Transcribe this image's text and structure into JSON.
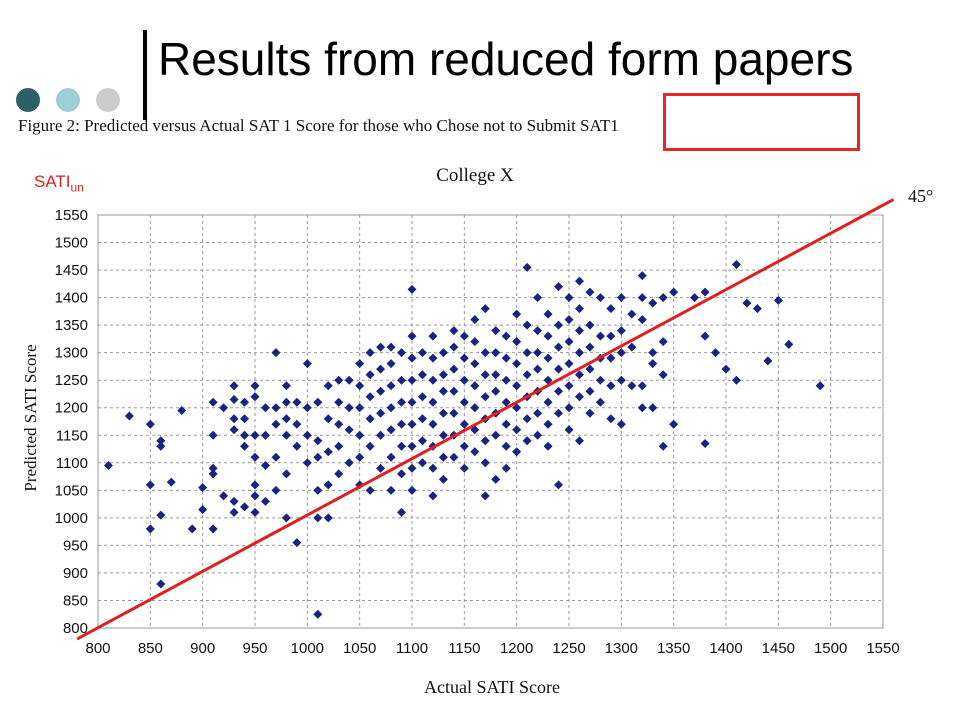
{
  "slide": {
    "title": "Results from reduced form papers",
    "figure_caption": "Figure 2: Predicted versus Actual SAT 1 Score for those who Chose not to Submit SAT1",
    "annotation_label": "SATI",
    "annotation_subscript": "un",
    "colors": {
      "dot_dark": "#2f5f66",
      "dot_mid": "#9fcfd6",
      "dot_light": "#cccccc",
      "highlight": "#e8262a"
    }
  },
  "chart_data": {
    "type": "scatter",
    "title": "College X",
    "xlabel": "Actual SATI Score",
    "ylabel": "Predicted SATI Score",
    "xlim": [
      800,
      1550
    ],
    "ylim": [
      800,
      1550
    ],
    "xticks": [
      800,
      850,
      900,
      950,
      1000,
      1050,
      1100,
      1150,
      1200,
      1250,
      1300,
      1350,
      1400,
      1450,
      1500,
      1550
    ],
    "yticks": [
      800,
      850,
      900,
      950,
      1000,
      1050,
      1100,
      1150,
      1200,
      1250,
      1300,
      1350,
      1400,
      1450,
      1500,
      1550
    ],
    "grid": true,
    "marker_color": "#1a237e",
    "reference_line": {
      "label": "45°",
      "color": "#e02020",
      "from": [
        780,
        780
      ],
      "to": [
        1560,
        1560
      ]
    },
    "points": [
      [
        810,
        1095
      ],
      [
        830,
        1185
      ],
      [
        850,
        1170
      ],
      [
        850,
        1060
      ],
      [
        850,
        980
      ],
      [
        860,
        1140
      ],
      [
        860,
        1130
      ],
      [
        860,
        1005
      ],
      [
        860,
        880
      ],
      [
        870,
        1065
      ],
      [
        880,
        1195
      ],
      [
        890,
        980
      ],
      [
        900,
        1055
      ],
      [
        900,
        1015
      ],
      [
        910,
        1210
      ],
      [
        910,
        1150
      ],
      [
        910,
        1090
      ],
      [
        910,
        1080
      ],
      [
        910,
        980
      ],
      [
        920,
        1200
      ],
      [
        920,
        1040
      ],
      [
        930,
        1240
      ],
      [
        930,
        1215
      ],
      [
        930,
        1180
      ],
      [
        930,
        1160
      ],
      [
        930,
        1030
      ],
      [
        930,
        1010
      ],
      [
        940,
        1210
      ],
      [
        940,
        1180
      ],
      [
        940,
        1150
      ],
      [
        940,
        1130
      ],
      [
        940,
        1020
      ],
      [
        950,
        1240
      ],
      [
        950,
        1220
      ],
      [
        950,
        1150
      ],
      [
        950,
        1110
      ],
      [
        950,
        1060
      ],
      [
        950,
        1040
      ],
      [
        950,
        1010
      ],
      [
        960,
        1200
      ],
      [
        960,
        1150
      ],
      [
        960,
        1095
      ],
      [
        960,
        1030
      ],
      [
        970,
        1300
      ],
      [
        970,
        1200
      ],
      [
        970,
        1170
      ],
      [
        970,
        1110
      ],
      [
        970,
        1050
      ],
      [
        980,
        1240
      ],
      [
        980,
        1210
      ],
      [
        980,
        1180
      ],
      [
        980,
        1150
      ],
      [
        980,
        1080
      ],
      [
        980,
        1000
      ],
      [
        990,
        1210
      ],
      [
        990,
        1170
      ],
      [
        990,
        1130
      ],
      [
        990,
        955
      ],
      [
        1000,
        1280
      ],
      [
        1000,
        1200
      ],
      [
        1000,
        1150
      ],
      [
        1000,
        1100
      ],
      [
        1010,
        1210
      ],
      [
        1010,
        1140
      ],
      [
        1010,
        1110
      ],
      [
        1010,
        1050
      ],
      [
        1010,
        1000
      ],
      [
        1010,
        825
      ],
      [
        1020,
        1240
      ],
      [
        1020,
        1180
      ],
      [
        1020,
        1120
      ],
      [
        1020,
        1060
      ],
      [
        1020,
        1000
      ],
      [
        1030,
        1250
      ],
      [
        1030,
        1210
      ],
      [
        1030,
        1170
      ],
      [
        1030,
        1130
      ],
      [
        1030,
        1080
      ],
      [
        1040,
        1250
      ],
      [
        1040,
        1200
      ],
      [
        1040,
        1160
      ],
      [
        1040,
        1100
      ],
      [
        1050,
        1280
      ],
      [
        1050,
        1240
      ],
      [
        1050,
        1200
      ],
      [
        1050,
        1150
      ],
      [
        1050,
        1110
      ],
      [
        1050,
        1060
      ],
      [
        1060,
        1300
      ],
      [
        1060,
        1260
      ],
      [
        1060,
        1220
      ],
      [
        1060,
        1180
      ],
      [
        1060,
        1130
      ],
      [
        1060,
        1050
      ],
      [
        1070,
        1310
      ],
      [
        1070,
        1270
      ],
      [
        1070,
        1230
      ],
      [
        1070,
        1190
      ],
      [
        1070,
        1150
      ],
      [
        1070,
        1090
      ],
      [
        1080,
        1310
      ],
      [
        1080,
        1280
      ],
      [
        1080,
        1240
      ],
      [
        1080,
        1200
      ],
      [
        1080,
        1160
      ],
      [
        1080,
        1110
      ],
      [
        1080,
        1050
      ],
      [
        1090,
        1300
      ],
      [
        1090,
        1250
      ],
      [
        1090,
        1210
      ],
      [
        1090,
        1170
      ],
      [
        1090,
        1130
      ],
      [
        1090,
        1080
      ],
      [
        1090,
        1010
      ],
      [
        1100,
        1415
      ],
      [
        1100,
        1330
      ],
      [
        1100,
        1290
      ],
      [
        1100,
        1250
      ],
      [
        1100,
        1210
      ],
      [
        1100,
        1170
      ],
      [
        1100,
        1130
      ],
      [
        1100,
        1090
      ],
      [
        1100,
        1050
      ],
      [
        1110,
        1300
      ],
      [
        1110,
        1260
      ],
      [
        1110,
        1220
      ],
      [
        1110,
        1180
      ],
      [
        1110,
        1140
      ],
      [
        1110,
        1100
      ],
      [
        1120,
        1330
      ],
      [
        1120,
        1290
      ],
      [
        1120,
        1250
      ],
      [
        1120,
        1210
      ],
      [
        1120,
        1170
      ],
      [
        1120,
        1130
      ],
      [
        1120,
        1090
      ],
      [
        1120,
        1040
      ],
      [
        1130,
        1300
      ],
      [
        1130,
        1260
      ],
      [
        1130,
        1230
      ],
      [
        1130,
        1190
      ],
      [
        1130,
        1150
      ],
      [
        1130,
        1110
      ],
      [
        1130,
        1070
      ],
      [
        1140,
        1340
      ],
      [
        1140,
        1310
      ],
      [
        1140,
        1270
      ],
      [
        1140,
        1230
      ],
      [
        1140,
        1190
      ],
      [
        1140,
        1150
      ],
      [
        1140,
        1110
      ],
      [
        1150,
        1330
      ],
      [
        1150,
        1290
      ],
      [
        1150,
        1250
      ],
      [
        1150,
        1210
      ],
      [
        1150,
        1170
      ],
      [
        1150,
        1130
      ],
      [
        1150,
        1090
      ],
      [
        1160,
        1360
      ],
      [
        1160,
        1320
      ],
      [
        1160,
        1280
      ],
      [
        1160,
        1240
      ],
      [
        1160,
        1200
      ],
      [
        1160,
        1160
      ],
      [
        1160,
        1120
      ],
      [
        1170,
        1380
      ],
      [
        1170,
        1300
      ],
      [
        1170,
        1260
      ],
      [
        1170,
        1220
      ],
      [
        1170,
        1180
      ],
      [
        1170,
        1140
      ],
      [
        1170,
        1100
      ],
      [
        1170,
        1040
      ],
      [
        1180,
        1340
      ],
      [
        1180,
        1300
      ],
      [
        1180,
        1260
      ],
      [
        1180,
        1230
      ],
      [
        1180,
        1190
      ],
      [
        1180,
        1150
      ],
      [
        1180,
        1070
      ],
      [
        1190,
        1330
      ],
      [
        1190,
        1290
      ],
      [
        1190,
        1250
      ],
      [
        1190,
        1210
      ],
      [
        1190,
        1170
      ],
      [
        1190,
        1130
      ],
      [
        1190,
        1090
      ],
      [
        1200,
        1370
      ],
      [
        1200,
        1320
      ],
      [
        1200,
        1280
      ],
      [
        1200,
        1240
      ],
      [
        1200,
        1200
      ],
      [
        1200,
        1160
      ],
      [
        1200,
        1120
      ],
      [
        1210,
        1455
      ],
      [
        1210,
        1350
      ],
      [
        1210,
        1300
      ],
      [
        1210,
        1260
      ],
      [
        1210,
        1220
      ],
      [
        1210,
        1180
      ],
      [
        1210,
        1140
      ],
      [
        1220,
        1400
      ],
      [
        1220,
        1340
      ],
      [
        1220,
        1300
      ],
      [
        1220,
        1270
      ],
      [
        1220,
        1230
      ],
      [
        1220,
        1190
      ],
      [
        1220,
        1150
      ],
      [
        1230,
        1370
      ],
      [
        1230,
        1330
      ],
      [
        1230,
        1290
      ],
      [
        1230,
        1250
      ],
      [
        1230,
        1210
      ],
      [
        1230,
        1170
      ],
      [
        1230,
        1130
      ],
      [
        1240,
        1420
      ],
      [
        1240,
        1350
      ],
      [
        1240,
        1310
      ],
      [
        1240,
        1270
      ],
      [
        1240,
        1230
      ],
      [
        1240,
        1190
      ],
      [
        1240,
        1060
      ],
      [
        1250,
        1400
      ],
      [
        1250,
        1360
      ],
      [
        1250,
        1320
      ],
      [
        1250,
        1280
      ],
      [
        1250,
        1240
      ],
      [
        1250,
        1200
      ],
      [
        1250,
        1160
      ],
      [
        1260,
        1430
      ],
      [
        1260,
        1380
      ],
      [
        1260,
        1340
      ],
      [
        1260,
        1300
      ],
      [
        1260,
        1260
      ],
      [
        1260,
        1220
      ],
      [
        1260,
        1140
      ],
      [
        1270,
        1410
      ],
      [
        1270,
        1350
      ],
      [
        1270,
        1310
      ],
      [
        1270,
        1270
      ],
      [
        1270,
        1230
      ],
      [
        1270,
        1190
      ],
      [
        1280,
        1400
      ],
      [
        1280,
        1330
      ],
      [
        1280,
        1290
      ],
      [
        1280,
        1250
      ],
      [
        1280,
        1210
      ],
      [
        1290,
        1380
      ],
      [
        1290,
        1330
      ],
      [
        1290,
        1290
      ],
      [
        1290,
        1240
      ],
      [
        1290,
        1180
      ],
      [
        1300,
        1400
      ],
      [
        1300,
        1340
      ],
      [
        1300,
        1300
      ],
      [
        1300,
        1250
      ],
      [
        1300,
        1170
      ],
      [
        1310,
        1370
      ],
      [
        1310,
        1310
      ],
      [
        1310,
        1240
      ],
      [
        1320,
        1440
      ],
      [
        1320,
        1400
      ],
      [
        1320,
        1360
      ],
      [
        1320,
        1240
      ],
      [
        1320,
        1200
      ],
      [
        1330,
        1390
      ],
      [
        1330,
        1300
      ],
      [
        1330,
        1280
      ],
      [
        1330,
        1200
      ],
      [
        1340,
        1400
      ],
      [
        1340,
        1320
      ],
      [
        1340,
        1260
      ],
      [
        1340,
        1130
      ],
      [
        1350,
        1410
      ],
      [
        1350,
        1170
      ],
      [
        1370,
        1400
      ],
      [
        1380,
        1410
      ],
      [
        1380,
        1330
      ],
      [
        1380,
        1135
      ],
      [
        1390,
        1300
      ],
      [
        1400,
        1270
      ],
      [
        1410,
        1250
      ],
      [
        1410,
        1460
      ],
      [
        1420,
        1390
      ],
      [
        1430,
        1380
      ],
      [
        1440,
        1285
      ],
      [
        1450,
        1395
      ],
      [
        1460,
        1315
      ],
      [
        1490,
        1240
      ]
    ]
  }
}
